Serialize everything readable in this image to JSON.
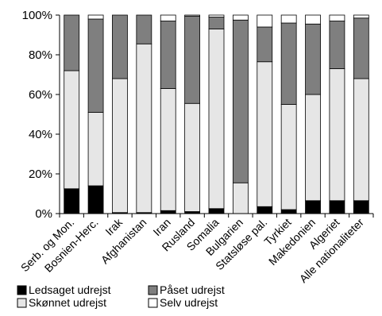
{
  "chart_data": {
    "type": "bar",
    "stacked": true,
    "categories": [
      "Serb. og Mon.",
      "Bosnien-Herc.",
      "Irak",
      "Afghanistan",
      "Iran",
      "Rusland",
      "Somalia",
      "Bulgarien",
      "Statsløse pal.",
      "Tyrkiet",
      "Makedonien",
      "Algeriet",
      "Alle nationaliteter"
    ],
    "series": [
      {
        "name": "Ledsaget udrejst",
        "color": "#000000",
        "values": [
          12.5,
          14,
          0.5,
          0.5,
          1.5,
          1,
          2.5,
          0,
          3.5,
          2,
          6.5,
          6.5,
          6.5
        ]
      },
      {
        "name": "Skønnet udrejst",
        "color": "#e6e6e6",
        "values": [
          59.5,
          37,
          67.5,
          85,
          61.5,
          54.5,
          90.5,
          15.5,
          73,
          53,
          53.5,
          66.5,
          61.5
        ]
      },
      {
        "name": "Påset udrejst",
        "color": "#7f7f7f",
        "values": [
          28,
          47,
          32,
          14.5,
          34,
          44,
          6,
          82,
          17.5,
          41,
          35.5,
          24,
          30.5
        ]
      },
      {
        "name": "Selv udrejst",
        "color": "#ffffff",
        "values": [
          0,
          2,
          0,
          0,
          3,
          0.5,
          1,
          2.5,
          6,
          4,
          4.5,
          3,
          1.5
        ]
      }
    ],
    "ylim": [
      0,
      100
    ],
    "yticks": [
      "0%",
      "20%",
      "40%",
      "60%",
      "80%",
      "100%"
    ],
    "grid": false,
    "legend_placement": "bottom"
  }
}
